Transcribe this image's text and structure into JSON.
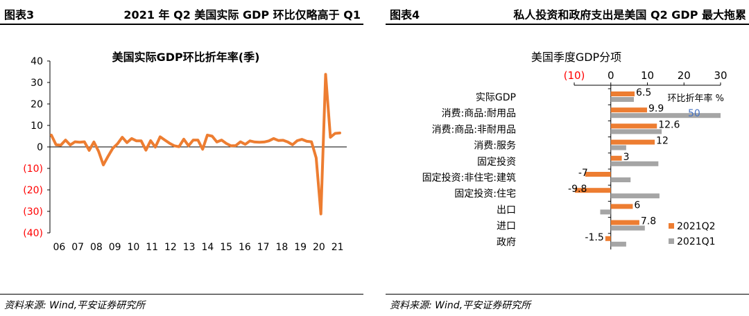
{
  "left": {
    "fig_label": "图表3",
    "fig_title": "2021 年 Q2 美国实际 GDP 环比仅略高于 Q1",
    "source": "资料来源: Wind,平安证券研究所",
    "chart_data": {
      "type": "line",
      "title": "美国实际GDP环比折年率(季)",
      "xlabel": "",
      "ylabel": "",
      "ylim": [
        -40,
        40
      ],
      "yticks": [
        40,
        30,
        20,
        10,
        0,
        -10,
        -20,
        -30,
        -40
      ],
      "ytick_labels": [
        "40",
        "30",
        "20",
        "10",
        "0",
        "(10)",
        "(20)",
        "(30)",
        "(40)"
      ],
      "xticks": [
        "06",
        "07",
        "08",
        "09",
        "10",
        "11",
        "12",
        "13",
        "14",
        "15",
        "16",
        "17",
        "18",
        "19",
        "20",
        "21"
      ],
      "color": "#ED7D31",
      "negative_tick_color": "#FF0000",
      "series": [
        {
          "values": [
            5.5,
            1.0,
            0.8,
            3.2,
            0.9,
            2.4,
            2.2,
            2.4,
            -1.6,
            2.3,
            -2.1,
            -8.4,
            -4.4,
            -0.6,
            1.5,
            4.5,
            2.0,
            3.9,
            2.8,
            2.8,
            -1.5,
            2.9,
            -0.1,
            4.7,
            3.2,
            1.7,
            0.5,
            0.1,
            3.6,
            0.5,
            3.2,
            3.2,
            -1.1,
            5.5,
            5.0,
            2.3,
            3.2,
            1.6,
            0.5,
            0.6,
            2.4,
            1.2,
            2.8,
            2.3,
            2.2,
            2.3,
            2.8,
            3.9,
            3.0,
            3.1,
            2.3,
            1.0,
            2.9,
            3.5,
            2.6,
            2.4,
            -5.1,
            -31.2,
            33.8,
            4.5,
            6.3,
            6.5
          ]
        }
      ]
    }
  },
  "right": {
    "fig_label": "图表4",
    "fig_title": "私人投资和政府支出是美国 Q2 GDP 最大拖累",
    "source": "资料来源: Wind,平安证券研究所",
    "chart_data": {
      "type": "bar",
      "title": "美国季度GDP分项",
      "unit_label": "环比折年率 %",
      "xlim": [
        -10,
        30
      ],
      "xticks": [
        -10,
        0,
        10,
        20,
        30
      ],
      "xtick_labels": [
        "(10)",
        "0",
        "10",
        "20",
        "30"
      ],
      "negative_tick_color": "#FF0000",
      "categories": [
        "实际GDP",
        "消费:商品:耐用品",
        "消费:商品:非耐用品",
        "消费:服务",
        "固定投资",
        "固定投资:非住宅:建筑",
        "固定投资:住宅",
        "出口",
        "进口",
        "政府"
      ],
      "series": [
        {
          "name": "2021Q2",
          "color": "#ED7D31",
          "values": [
            6.5,
            9.9,
            12.6,
            12,
            3,
            -7,
            -9.8,
            6,
            7.8,
            -1.5
          ],
          "labels": [
            "6.5",
            "9.9",
            "12.6",
            "12",
            "3",
            "-7",
            "-9.8",
            "6",
            "7.8",
            "-1.5"
          ]
        },
        {
          "name": "2021Q1",
          "color": "#A5A5A5",
          "values": [
            6.3,
            50,
            13.9,
            4.2,
            13.0,
            5.4,
            13.3,
            -2.9,
            9.3,
            4.2
          ]
        }
      ],
      "annotation": {
        "text": "50",
        "color": "#4472C4"
      },
      "legend_position": "bottom-right"
    }
  }
}
